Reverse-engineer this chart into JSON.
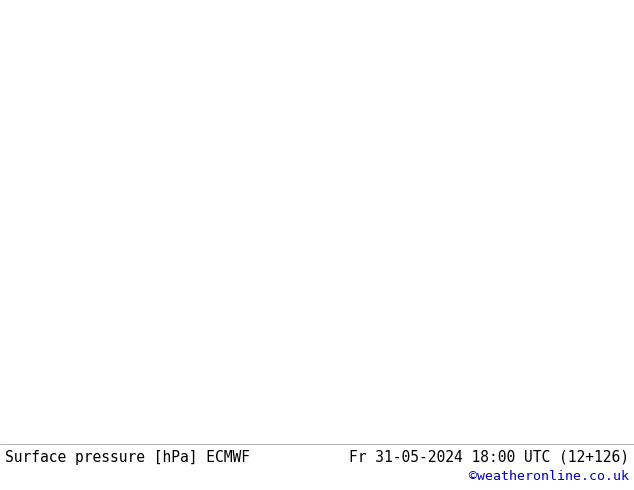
{
  "title_left": "Surface pressure [hPa] ECMWF",
  "title_right": "Fr 31-05-2024 18:00 UTC (12+126)",
  "credit": "©weatheronline.co.uk",
  "bg_color_bottom": "#ffffff",
  "credit_color": "#0000bb",
  "font_size_footer": 10.5,
  "font_size_credit": 9.5,
  "land_color": "#c8e8a0",
  "sea_color": "#ddeeff",
  "mountain_color": "#d0d0c8",
  "contour_blue": "#0000ff",
  "contour_red": "#ff0000",
  "contour_black": "#000000",
  "extent": [
    22,
    145,
    0,
    60
  ],
  "figsize": [
    6.34,
    4.9
  ],
  "dpi": 100
}
